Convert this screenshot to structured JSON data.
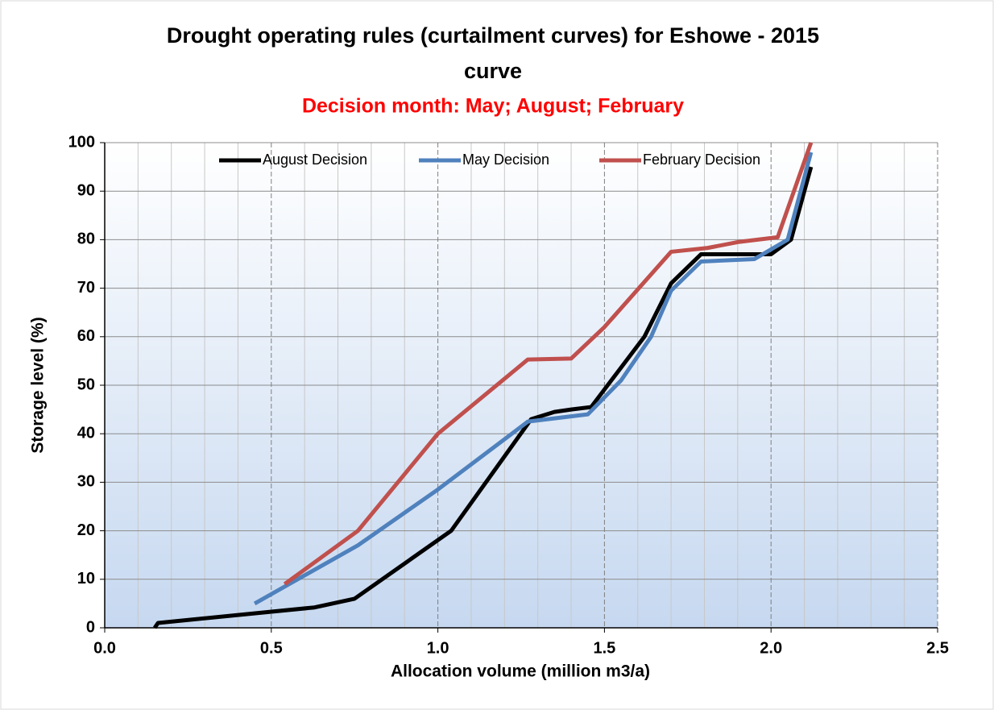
{
  "chart_data": {
    "type": "line",
    "title": [
      "Drought operating rules (curtailment curves) for Eshowe - 2015",
      "curve"
    ],
    "subtitle": "Decision month: May; August; February",
    "subtitle_color": "#ff0000",
    "x_label": "Allocation volume (million m3/a)",
    "y_label": "Storage level (%)",
    "xlim": [
      0,
      2.5
    ],
    "ylim": [
      0,
      100
    ],
    "xticks": [
      {
        "value": 0,
        "label": "0.0"
      },
      0.5,
      {
        "value": 1,
        "label": "1.0"
      },
      1.5,
      {
        "value": 2,
        "label": "2.0"
      },
      2.5
    ],
    "x_minor_ticks": [
      0.1,
      0.2,
      0.3,
      0.4,
      0.6,
      0.7,
      0.8,
      0.9,
      1.1,
      1.2,
      1.3,
      1.4,
      1.6,
      1.7,
      1.8,
      1.9,
      2.1,
      2.2,
      2.3,
      2.4
    ],
    "yticks": [
      0,
      10,
      20,
      30,
      40,
      50,
      60,
      70,
      80,
      90,
      100
    ],
    "grid": true,
    "legend": "top",
    "series": [
      {
        "name": "August Decision",
        "color": "#000000",
        "x": [
          0.15,
          0.16,
          0.63,
          0.75,
          1.04,
          1.28,
          1.35,
          1.4,
          1.46,
          1.62,
          1.7,
          1.79,
          2.0,
          2.06,
          2.12
        ],
        "values": [
          0,
          1,
          4.2,
          6,
          20,
          43,
          44.5,
          45,
          45.5,
          60,
          71,
          77,
          77,
          80,
          95
        ]
      },
      {
        "name": "May Decision",
        "color": "#4f81bd",
        "x": [
          0.45,
          0.76,
          1.0,
          1.27,
          1.45,
          1.55,
          1.64,
          1.7,
          1.79,
          1.95,
          2.05,
          2.12
        ],
        "values": [
          5,
          17,
          28.5,
          42.5,
          44,
          51,
          60,
          69.5,
          75.5,
          76,
          80,
          98
        ]
      },
      {
        "name": "February Decision",
        "color": "#c0504d",
        "x": [
          0.54,
          0.76,
          1.0,
          1.27,
          1.4,
          1.5,
          1.7,
          1.81,
          1.9,
          2.02,
          2.12
        ],
        "values": [
          9,
          20,
          40,
          55.3,
          55.5,
          62,
          77.5,
          78.3,
          79.5,
          80.5,
          100
        ]
      }
    ]
  }
}
